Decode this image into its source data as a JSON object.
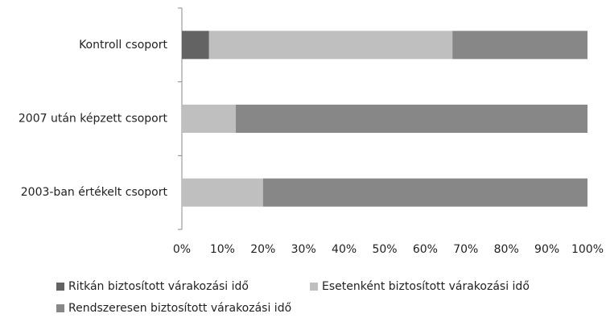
{
  "chart_data": {
    "type": "stacked-barh",
    "categories": [
      "Kontroll csoport",
      "2007 után képzett csoport",
      "2003-ban értékelt csoport"
    ],
    "series": [
      {
        "name": "Ritkán biztosított várakozási idő",
        "color": "#636363",
        "values": [
          6.7,
          0,
          0
        ]
      },
      {
        "name": "Esetenként biztosított várakozási idő",
        "color": "#bfbfbf",
        "values": [
          60,
          13.3,
          20
        ]
      },
      {
        "name": "Rendszeresen biztosított várakozási idő",
        "color": "#878787",
        "values": [
          33.3,
          86.7,
          80
        ]
      }
    ],
    "xlim": [
      0,
      100
    ],
    "xticks": [
      {
        "value": 0,
        "label": "0%"
      },
      {
        "value": 10,
        "label": "10%"
      },
      {
        "value": 20,
        "label": "20%"
      },
      {
        "value": 30,
        "label": "30%"
      },
      {
        "value": 40,
        "label": "40%"
      },
      {
        "value": 50,
        "label": "50%"
      },
      {
        "value": 60,
        "label": "60%"
      },
      {
        "value": 70,
        "label": "70%"
      },
      {
        "value": 80,
        "label": "80%"
      },
      {
        "value": 90,
        "label": "90%"
      },
      {
        "value": 100,
        "label": "100%"
      }
    ],
    "grid": false
  }
}
